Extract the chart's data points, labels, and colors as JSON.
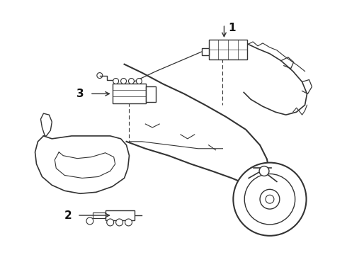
{
  "background_color": "#ffffff",
  "line_color": "#333333",
  "label_color": "#111111",
  "figsize": [
    4.9,
    3.6
  ],
  "dpi": 100
}
